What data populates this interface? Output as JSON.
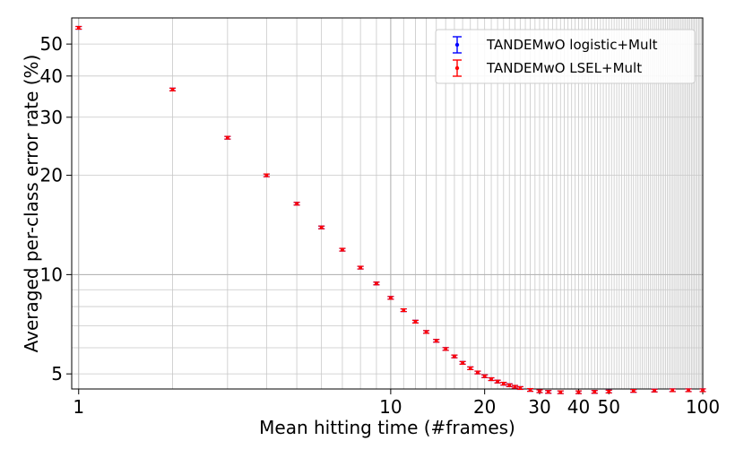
{
  "chart_data": {
    "type": "scatter",
    "title": "",
    "xlabel": "Mean hitting time (#frames)",
    "ylabel": "Averaged per-class error rate (%)",
    "xscale": "log",
    "yscale": "log",
    "xlim": [
      0.95,
      100
    ],
    "ylim": [
      4.5,
      60
    ],
    "grid": true,
    "legend_position": "top-right",
    "x_ticks": [
      {
        "value": 1,
        "label": "1"
      },
      {
        "value": 10,
        "label": "10"
      },
      {
        "value": 20,
        "label": "20"
      },
      {
        "value": 30,
        "label": "30"
      },
      {
        "value": 40,
        "label": "40"
      },
      {
        "value": 50,
        "label": "50"
      },
      {
        "value": 100,
        "label": "100"
      }
    ],
    "y_ticks": [
      {
        "value": 5,
        "label": "5"
      },
      {
        "value": 10,
        "label": "10"
      },
      {
        "value": 20,
        "label": "20"
      },
      {
        "value": 30,
        "label": "30"
      },
      {
        "value": 40,
        "label": "40"
      },
      {
        "value": 50,
        "label": "50"
      }
    ],
    "series": [
      {
        "name": "TANDEMwO logistic+Mult",
        "color": "#0000ff",
        "x": [
          1,
          2,
          3,
          4,
          5,
          6,
          7,
          8,
          9,
          10,
          11,
          12,
          13,
          14,
          15,
          16,
          17,
          18,
          19,
          20,
          21,
          22,
          23,
          24,
          25,
          26,
          28,
          30,
          32,
          35,
          40,
          45,
          50,
          60,
          70,
          80,
          90,
          100
        ],
        "y": [
          56.0,
          36.4,
          26.0,
          20.0,
          16.4,
          13.9,
          11.9,
          10.5,
          9.4,
          8.5,
          7.8,
          7.2,
          6.7,
          6.3,
          5.95,
          5.65,
          5.4,
          5.2,
          5.05,
          4.92,
          4.82,
          4.74,
          4.67,
          4.62,
          4.57,
          4.53,
          4.47,
          4.43,
          4.41,
          4.4,
          4.4,
          4.41,
          4.42,
          4.44,
          4.45,
          4.46,
          4.46,
          4.46
        ]
      },
      {
        "name": "TANDEMwO LSEL+Mult",
        "color": "#ff0000",
        "x": [
          1,
          2,
          3,
          4,
          5,
          6,
          7,
          8,
          9,
          10,
          11,
          12,
          13,
          14,
          15,
          16,
          17,
          18,
          19,
          20,
          21,
          22,
          23,
          24,
          25,
          26,
          28,
          30,
          32,
          35,
          40,
          45,
          50,
          60,
          70,
          80,
          90,
          100
        ],
        "y": [
          56.0,
          36.4,
          26.0,
          20.0,
          16.4,
          13.9,
          11.9,
          10.5,
          9.4,
          8.5,
          7.8,
          7.2,
          6.7,
          6.3,
          5.95,
          5.65,
          5.4,
          5.2,
          5.05,
          4.92,
          4.82,
          4.74,
          4.67,
          4.62,
          4.57,
          4.53,
          4.47,
          4.43,
          4.41,
          4.4,
          4.4,
          4.41,
          4.42,
          4.44,
          4.45,
          4.46,
          4.46,
          4.46
        ]
      }
    ]
  }
}
